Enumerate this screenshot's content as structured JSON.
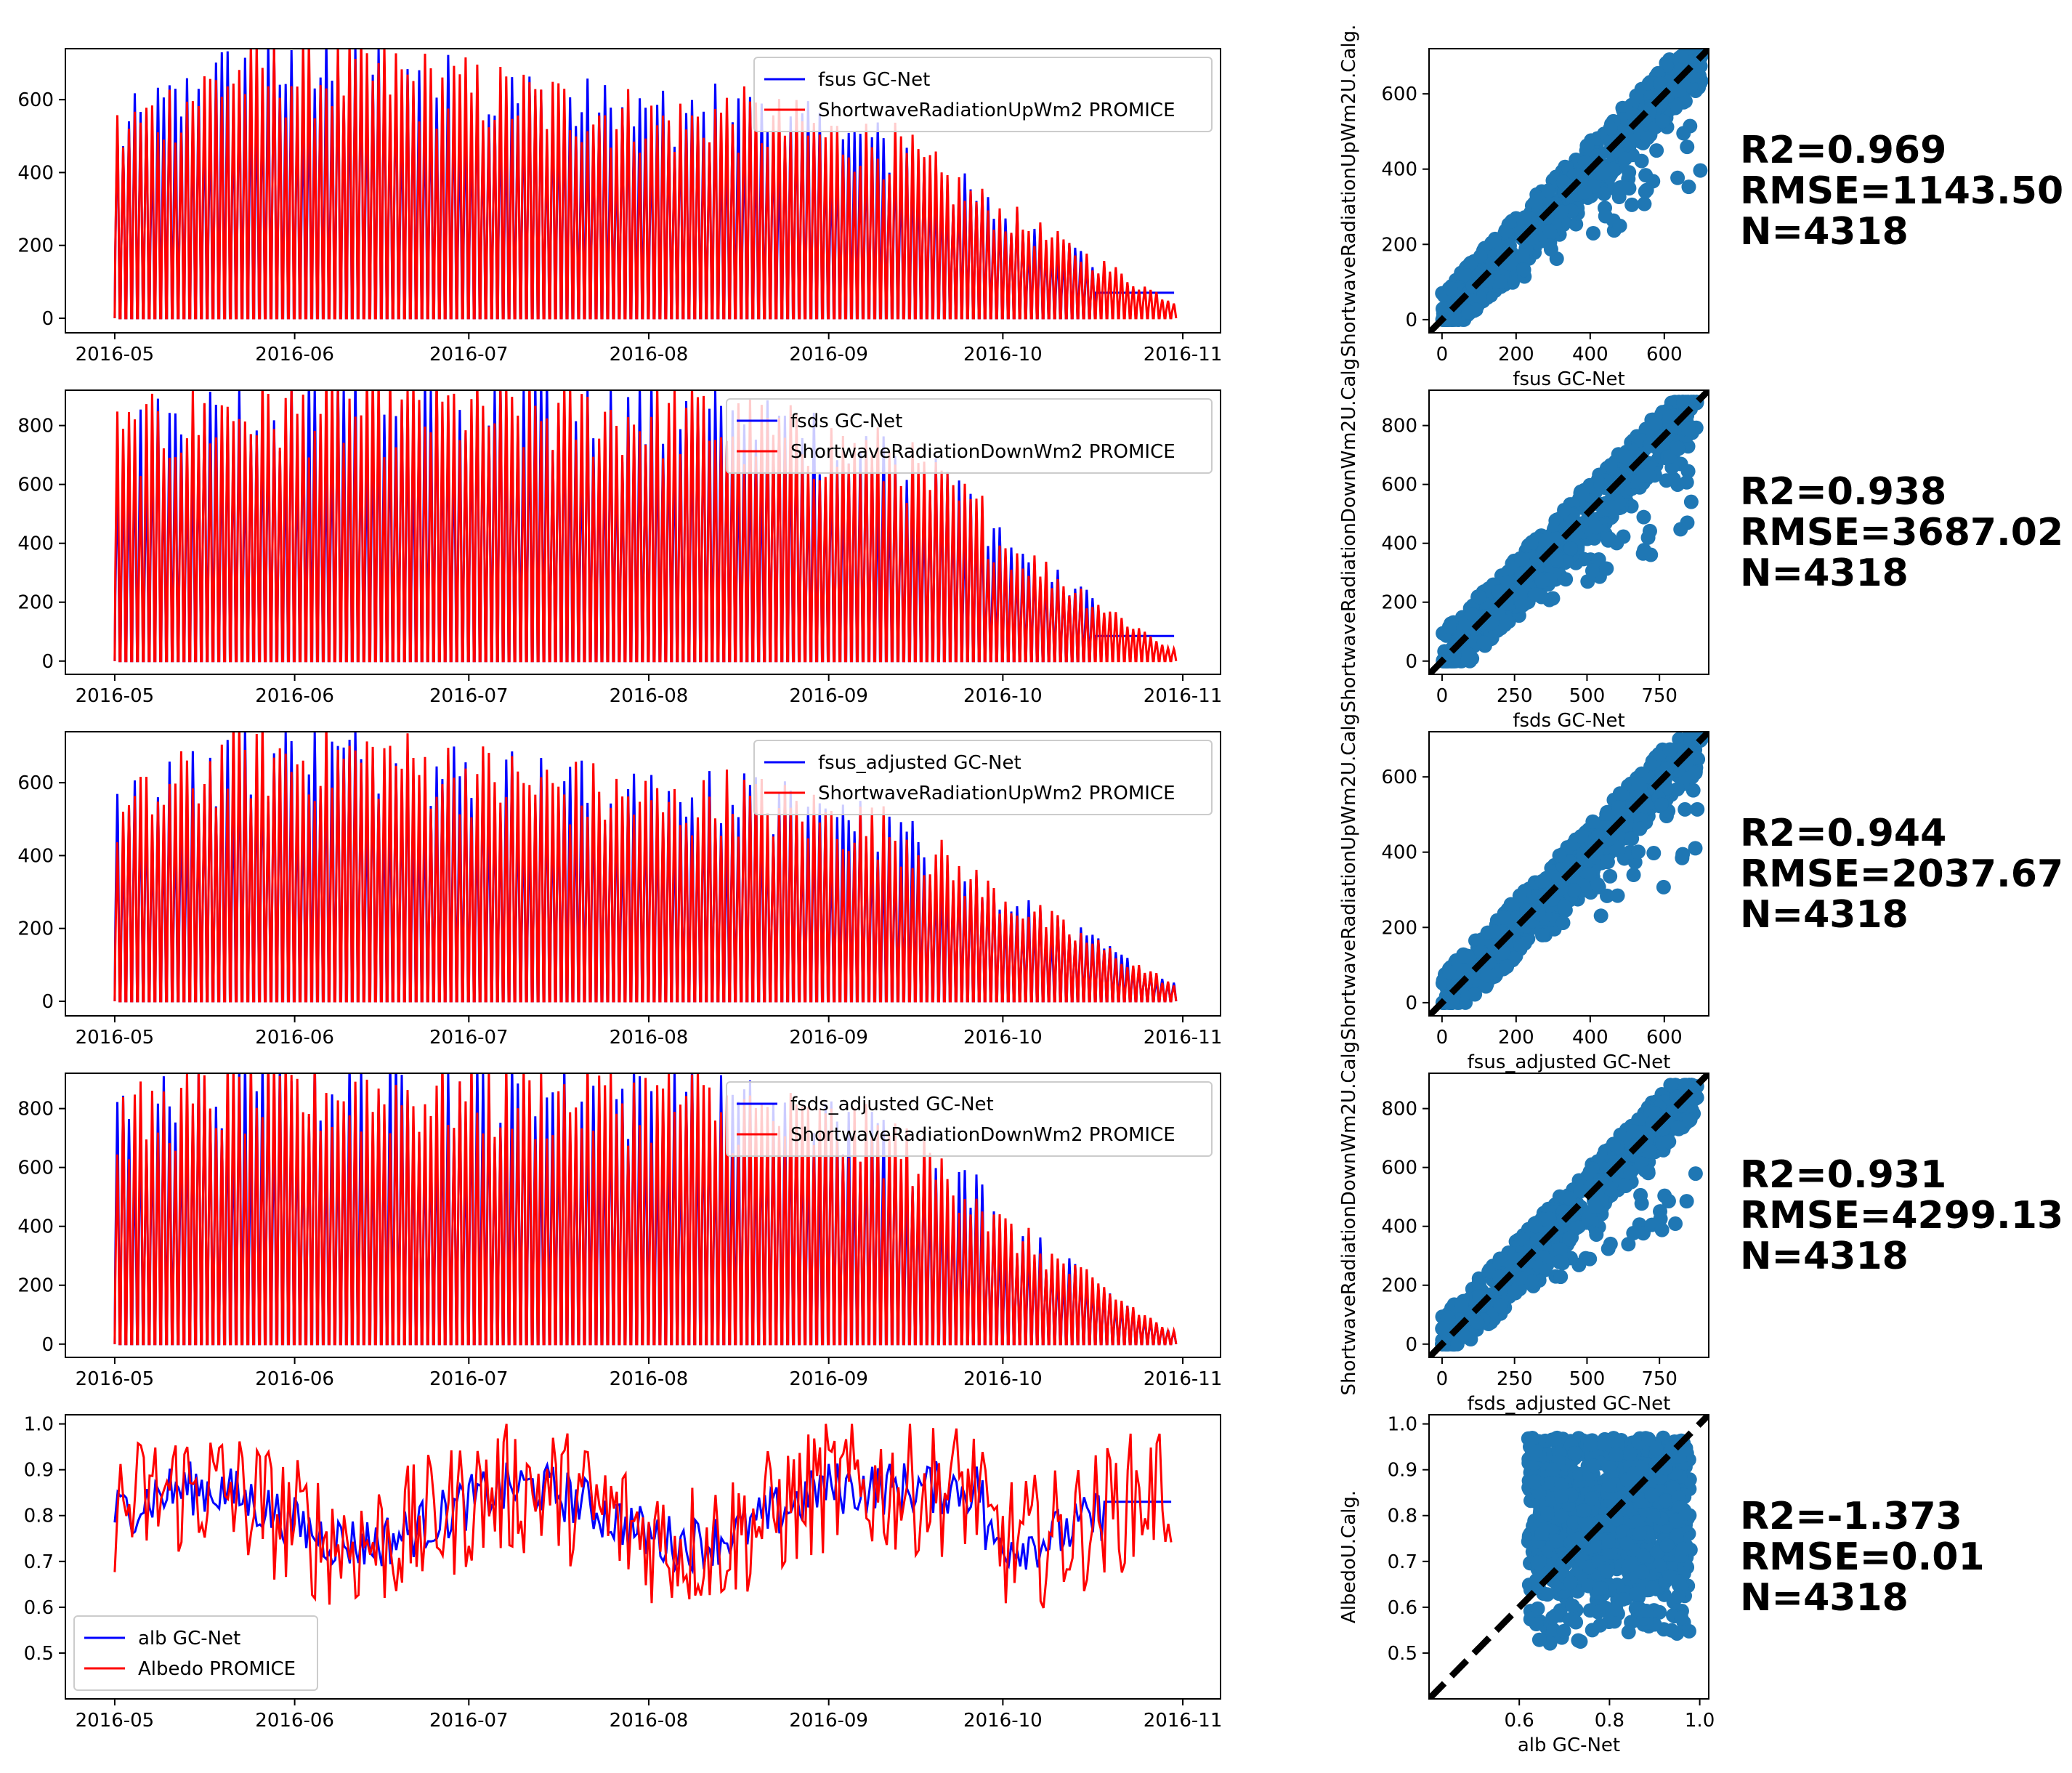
{
  "chart_data": [
    {
      "type": "line",
      "x_ticks": [
        "2016-05",
        "2016-06",
        "2016-07",
        "2016-08",
        "2016-09",
        "2016-10",
        "2016-11"
      ],
      "ylim": [
        -40,
        740
      ],
      "y_ticks": [
        0,
        200,
        400,
        600
      ],
      "legend_position": "top-right",
      "series": [
        {
          "name": "fsus GC-Net",
          "color": "#0000ff"
        },
        {
          "name": "ShortwaveRadiationUpWm2 PROMICE",
          "color": "#ff0000"
        }
      ]
    },
    {
      "type": "line",
      "x_ticks": [
        "2016-05",
        "2016-06",
        "2016-07",
        "2016-08",
        "2016-09",
        "2016-10",
        "2016-11"
      ],
      "ylim": [
        -45,
        920
      ],
      "y_ticks": [
        0,
        200,
        400,
        600,
        800
      ],
      "legend_position": "top-right",
      "series": [
        {
          "name": "fsds GC-Net",
          "color": "#0000ff"
        },
        {
          "name": "ShortwaveRadiationDownWm2 PROMICE",
          "color": "#ff0000"
        }
      ]
    },
    {
      "type": "line",
      "x_ticks": [
        "2016-05",
        "2016-06",
        "2016-07",
        "2016-08",
        "2016-09",
        "2016-10",
        "2016-11"
      ],
      "ylim": [
        -40,
        740
      ],
      "y_ticks": [
        0,
        200,
        400,
        600
      ],
      "legend_position": "top-right",
      "series": [
        {
          "name": "fsus_adjusted GC-Net",
          "color": "#0000ff"
        },
        {
          "name": "ShortwaveRadiationUpWm2 PROMICE",
          "color": "#ff0000"
        }
      ]
    },
    {
      "type": "line",
      "x_ticks": [
        "2016-05",
        "2016-06",
        "2016-07",
        "2016-08",
        "2016-09",
        "2016-10",
        "2016-11"
      ],
      "ylim": [
        -45,
        920
      ],
      "y_ticks": [
        0,
        200,
        400,
        600,
        800
      ],
      "legend_position": "top-right",
      "series": [
        {
          "name": "fsds_adjusted GC-Net",
          "color": "#0000ff"
        },
        {
          "name": "ShortwaveRadiationDownWm2 PROMICE",
          "color": "#ff0000"
        }
      ]
    },
    {
      "type": "line",
      "x_ticks": [
        "2016-05",
        "2016-06",
        "2016-07",
        "2016-08",
        "2016-09",
        "2016-10",
        "2016-11"
      ],
      "ylim": [
        0.4,
        1.02
      ],
      "y_ticks": [
        "0.5",
        "0.6",
        "0.7",
        "0.8",
        "0.9",
        "1.0"
      ],
      "legend_position": "bottom-left",
      "series": [
        {
          "name": "alb GC-Net",
          "color": "#0000ff"
        },
        {
          "name": "Albedo PROMICE",
          "color": "#ff0000"
        }
      ]
    },
    {
      "type": "scatter",
      "xlabel": "fsus GC-Net",
      "ylabel": "ShortwaveRadiationUpWm2U.Calg.",
      "xlim": [
        -35,
        720
      ],
      "ylim": [
        -35,
        720
      ],
      "x_ticks": [
        0,
        200,
        400,
        600
      ],
      "y_ticks": [
        0,
        200,
        400,
        600
      ],
      "color": "#1f77b4",
      "stats": [
        "R2=0.969",
        "RMSE=1143.50",
        "N=4318"
      ]
    },
    {
      "type": "scatter",
      "xlabel": "fsds GC-Net",
      "ylabel": "ShortwaveRadiationDownWm2U.Calg.",
      "xlim": [
        -45,
        920
      ],
      "ylim": [
        -45,
        920
      ],
      "x_ticks": [
        0,
        250,
        500,
        750
      ],
      "y_ticks": [
        0,
        200,
        400,
        600,
        800
      ],
      "color": "#1f77b4",
      "stats": [
        "R2=0.938",
        "RMSE=3687.02",
        "N=4318"
      ]
    },
    {
      "type": "scatter",
      "xlabel": "fsus_adjusted GC-Net",
      "ylabel": "ShortwaveRadiationUpWm2U.Calg.",
      "xlim": [
        -35,
        720
      ],
      "ylim": [
        -35,
        720
      ],
      "x_ticks": [
        0,
        200,
        400,
        600
      ],
      "y_ticks": [
        0,
        200,
        400,
        600
      ],
      "color": "#1f77b4",
      "stats": [
        "R2=0.944",
        "RMSE=2037.67",
        "N=4318"
      ]
    },
    {
      "type": "scatter",
      "xlabel": "fsds_adjusted GC-Net",
      "ylabel": "ShortwaveRadiationDownWm2U.Calg.",
      "xlim": [
        -45,
        920
      ],
      "ylim": [
        -45,
        920
      ],
      "x_ticks": [
        0,
        250,
        500,
        750
      ],
      "y_ticks": [
        0,
        200,
        400,
        600,
        800
      ],
      "color": "#1f77b4",
      "stats": [
        "R2=0.931",
        "RMSE=4299.13",
        "N=4318"
      ]
    },
    {
      "type": "scatter",
      "xlabel": "alb GC-Net",
      "ylabel": "AlbedoU.Calg.",
      "xlim": [
        0.4,
        1.02
      ],
      "ylim": [
        0.4,
        1.02
      ],
      "x_ticks": [
        "0.6",
        "0.8",
        "1.0"
      ],
      "y_ticks": [
        "0.5",
        "0.6",
        "0.7",
        "0.8",
        "0.9",
        "1.0"
      ],
      "color": "#1f77b4",
      "stats": [
        "R2=-1.373",
        "RMSE=0.01",
        "N=4318"
      ]
    }
  ]
}
